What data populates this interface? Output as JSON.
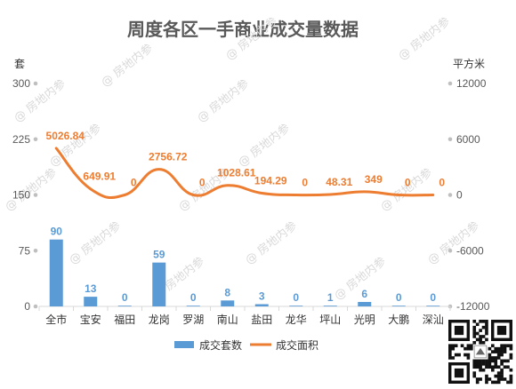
{
  "chart_data": {
    "type": "bar+line",
    "title": "周度各区一手商业成交量数据",
    "categories": [
      "全市",
      "宝安",
      "福田",
      "龙岗",
      "罗湖",
      "南山",
      "盐田",
      "龙华",
      "坪山",
      "光明",
      "大鹏",
      "深汕"
    ],
    "left_axis": {
      "unit": "套",
      "min": 0,
      "max": 300,
      "ticks": [
        "0",
        "75",
        "150",
        "225",
        "300"
      ]
    },
    "right_axis": {
      "unit": "平方米",
      "min": -12000,
      "max": 12000,
      "ticks": [
        "-12000",
        "-6000",
        "0",
        "6000",
        "12000"
      ]
    },
    "series": [
      {
        "name": "成交套数",
        "type": "bar",
        "axis": "left",
        "color": "#5b9bd5",
        "values": [
          90,
          13,
          0,
          59,
          0,
          8,
          3,
          0,
          1,
          6,
          0,
          0
        ],
        "labels": [
          "90",
          "13",
          "0",
          "59",
          "0",
          "8",
          "3",
          "0",
          "1",
          "6",
          "0",
          "0"
        ]
      },
      {
        "name": "成交面积",
        "type": "line",
        "axis": "right",
        "color": "#ed7d31",
        "values": [
          5026.84,
          649.91,
          0,
          2756.72,
          0,
          1028.61,
          194.29,
          0,
          48.31,
          349,
          0,
          0
        ],
        "labels": [
          "5026.84",
          "649.91",
          "0",
          "2756.72",
          "0",
          "1028.61",
          "194.29",
          "0",
          "48.31",
          "349",
          "0",
          "0"
        ]
      }
    ],
    "legend_position": "bottom",
    "grid": false
  },
  "watermark": "@ 房地内参"
}
